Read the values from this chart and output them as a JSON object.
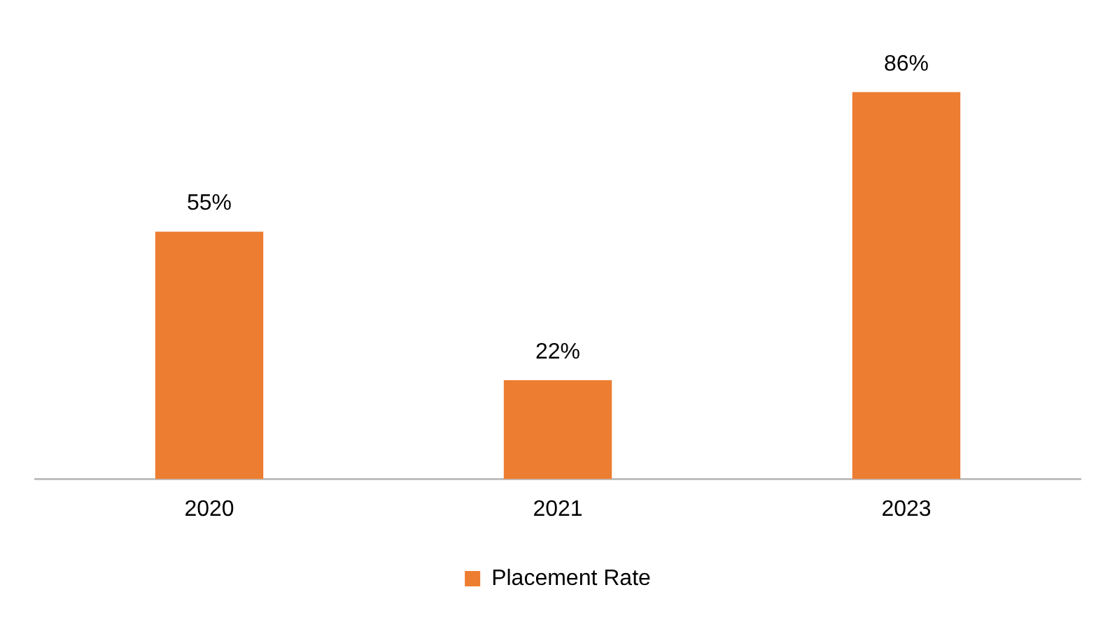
{
  "chart_data": {
    "type": "bar",
    "categories": [
      "2020",
      "2021",
      "2023"
    ],
    "series": [
      {
        "name": "Placement Rate",
        "color": "#ed7d31",
        "values": [
          55,
          22,
          86
        ],
        "value_labels": [
          "55%",
          "22%",
          "86%"
        ]
      }
    ],
    "tick_labels": "x",
    "grid": false,
    "legend": "bottom"
  }
}
